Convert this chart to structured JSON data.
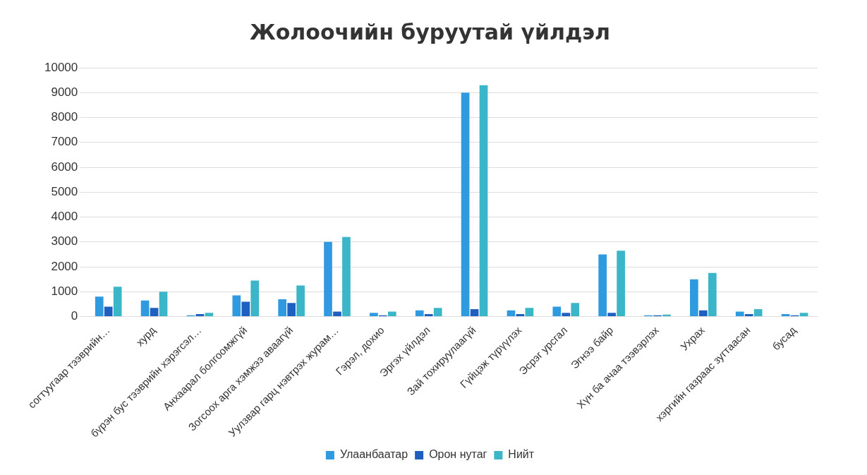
{
  "chart_data": {
    "type": "bar",
    "title": "Жолоочийн буруутай үйлдэл",
    "categories": [
      "согтуугаар тээврийн…",
      "хурд",
      "бүрэн бус тээврийн хэрэгсэл…",
      "Анхаарал болгоомжгүй",
      "Зогсоох арга хэмжээ аваагүй",
      "Уулзвар гарц нэвтрэх журам…",
      "Гэрэл, дохио",
      "Эргэх үйлдэл",
      "Зай тохируулаагүй",
      "Гүйцэж түрүүлэх",
      "Эсрэг урсгал",
      "Эгнээ байр",
      "Хүн ба ачаа тээвэрлэх",
      "Ухрах",
      "хэргийн газраас зугтаасан",
      "бусад"
    ],
    "series": [
      {
        "name": "Улаанбаатар",
        "color": "#2f9ae0",
        "values": [
          800,
          650,
          50,
          850,
          700,
          3000,
          150,
          250,
          9000,
          250,
          400,
          2500,
          50,
          1500,
          200,
          100
        ]
      },
      {
        "name": "Орон нутаг",
        "color": "#1f5fbf",
        "values": [
          400,
          350,
          100,
          600,
          550,
          200,
          50,
          100,
          300,
          100,
          150,
          150,
          50,
          250,
          100,
          50
        ]
      },
      {
        "name": "Нийт",
        "color": "#3bb5c8",
        "values": [
          1200,
          1000,
          150,
          1450,
          1250,
          3200,
          200,
          350,
          9300,
          350,
          550,
          2650,
          80,
          1750,
          300,
          150
        ]
      }
    ],
    "ylim": [
      0,
      10000
    ],
    "yticks": [
      0,
      1000,
      2000,
      3000,
      4000,
      5000,
      6000,
      7000,
      8000,
      9000,
      10000
    ],
    "grid": "y",
    "legend": "bottom"
  }
}
